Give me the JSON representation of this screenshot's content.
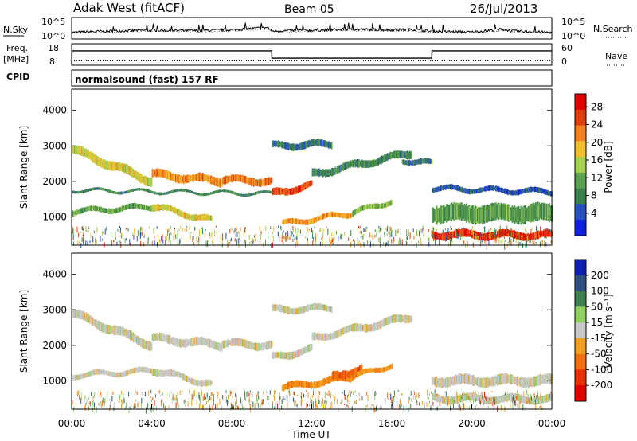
{
  "header": {
    "station": "Adak West (fitACF)",
    "beam": "Beam 05",
    "date": "26/Jul/2013"
  },
  "left_labels": {
    "nsky": "N.Sky",
    "freq": "Freq.",
    "freq_unit": "[MHz]",
    "cpid": "CPID"
  },
  "right_labels": {
    "nsearch": "N.Search",
    "nave": "Nave"
  },
  "cpid_text": "normalsound (fast) 157 RF",
  "colors": {
    "power_scale": [
      "#1020e0",
      "#2850c0",
      "#3c8050",
      "#5aa050",
      "#a6d050",
      "#f0c030",
      "#f08020",
      "#e04010",
      "#e00000"
    ],
    "velocity_scale": [
      "#1020b0",
      "#305080",
      "#408050",
      "#90d060",
      "#c8c8c8",
      "#f0a020",
      "#f07010",
      "#e83000",
      "#e00000"
    ],
    "noise_trace": "#000000"
  },
  "chart_data": [
    {
      "type": "line",
      "panel": "noise",
      "xlim": [
        0,
        24
      ],
      "left_ticks": [
        "10^5",
        "10^0"
      ],
      "right_ticks": [
        "10^5",
        "10^0"
      ],
      "left_label": "N.Sky",
      "right_label": "N.Search",
      "series": [
        {
          "x": [
            0,
            2,
            4,
            6,
            8,
            9.8,
            10,
            12,
            14,
            16,
            17,
            18,
            20,
            21.5,
            22,
            24
          ],
          "values": [
            1.2,
            1.6,
            1.8,
            1.7,
            1.9,
            2.6,
            1.6,
            1.8,
            2.1,
            1.9,
            2.0,
            1.5,
            1.3,
            2.1,
            1.6,
            1.2
          ]
        }
      ]
    },
    {
      "type": "line",
      "panel": "frequency",
      "xlim": [
        0,
        24
      ],
      "left_ticks": [
        "18",
        "8"
      ],
      "right_ticks": [
        "60",
        "0"
      ],
      "left_label": "Freq. [MHz]",
      "right_label": "Nave",
      "series": [
        {
          "x": [
            0,
            0.02,
            10,
            10.01,
            18,
            18.01,
            24
          ],
          "values": [
            8,
            15,
            15,
            11,
            11,
            15,
            15
          ]
        },
        {
          "x": [
            0,
            24
          ],
          "values": [
            9.5,
            9.5
          ]
        }
      ]
    },
    {
      "type": "heatmap",
      "panel": "power",
      "ylabel": "Slant Range [km]",
      "colorbar_label": "Power [dB]",
      "xlim": [
        0,
        24
      ],
      "ylim": [
        200,
        4600
      ],
      "yticks": [
        "4000",
        "3000",
        "2000",
        "1000"
      ],
      "colorbar_ticks": [
        "28",
        "24",
        "20",
        "16",
        "12",
        "8",
        "4"
      ],
      "colorbar_range": [
        0,
        32
      ],
      "bands": [
        {
          "t0": 0.0,
          "t1": 4.0,
          "r0": 2900,
          "r1": 2000,
          "w": 260,
          "v": 18
        },
        {
          "t0": 4.0,
          "t1": 7.5,
          "r0": 2200,
          "r1": 2000,
          "w": 240,
          "v": 22
        },
        {
          "t0": 7.5,
          "t1": 10.0,
          "r0": 2050,
          "r1": 2000,
          "w": 220,
          "v": 24
        },
        {
          "t0": 10.0,
          "t1": 12.0,
          "r0": 1650,
          "r1": 1900,
          "w": 200,
          "v": 26
        },
        {
          "t0": 0.0,
          "t1": 10.0,
          "r0": 1750,
          "r1": 1650,
          "w": 80,
          "v": 10
        },
        {
          "t0": 0.0,
          "t1": 4.5,
          "r0": 1150,
          "r1": 1300,
          "w": 150,
          "v": 12
        },
        {
          "t0": 4.0,
          "t1": 7.0,
          "r0": 1300,
          "r1": 900,
          "w": 180,
          "v": 18
        },
        {
          "t0": 10.5,
          "t1": 14.0,
          "r0": 800,
          "r1": 1100,
          "w": 150,
          "v": 22
        },
        {
          "t0": 14.0,
          "t1": 16.0,
          "r0": 1100,
          "r1": 1450,
          "w": 150,
          "v": 14
        },
        {
          "t0": 10.0,
          "t1": 13.0,
          "r0": 3000,
          "r1": 3050,
          "w": 200,
          "v": 8
        },
        {
          "t0": 12.0,
          "t1": 17.0,
          "r0": 2200,
          "r1": 2800,
          "w": 220,
          "v": 10
        },
        {
          "t0": 16.5,
          "t1": 18.0,
          "r0": 2600,
          "r1": 2500,
          "w": 160,
          "v": 8
        },
        {
          "t0": 18.0,
          "t1": 24.0,
          "r0": 500,
          "r1": 480,
          "w": 220,
          "v": 28
        },
        {
          "t0": 18.0,
          "t1": 24.0,
          "r0": 1100,
          "r1": 1100,
          "w": 500,
          "v": 12
        },
        {
          "t0": 18.0,
          "t1": 24.0,
          "r0": 1800,
          "r1": 1700,
          "w": 150,
          "v": 6
        }
      ]
    },
    {
      "type": "heatmap",
      "panel": "velocity",
      "ylabel": "Slant Range [km]",
      "colorbar_label": "Velocity [m s⁻¹]",
      "xlim": [
        0,
        24
      ],
      "ylim": [
        200,
        4600
      ],
      "yticks": [
        "4000",
        "3000",
        "2000",
        "1000"
      ],
      "xticks": [
        "00:00",
        "04:00",
        "08:00",
        "12:00",
        "16:00",
        "20:00",
        "00:00"
      ],
      "xlabel": "Time UT",
      "colorbar_ticks": [
        "200",
        "100",
        "50",
        "15",
        "-15",
        "-50",
        "-100",
        "-200"
      ],
      "colorbar_range": [
        -250,
        250
      ],
      "bands": [
        {
          "t0": 0.0,
          "t1": 4.0,
          "r0": 2900,
          "r1": 2000,
          "w": 260,
          "v": 0
        },
        {
          "t0": 4.0,
          "t1": 7.5,
          "r0": 2200,
          "r1": 2000,
          "w": 240,
          "v": 0
        },
        {
          "t0": 7.5,
          "t1": 10.0,
          "r0": 2050,
          "r1": 2000,
          "w": 220,
          "v": 0
        },
        {
          "t0": 10.0,
          "t1": 12.0,
          "r0": 1650,
          "r1": 1900,
          "w": 200,
          "v": 0
        },
        {
          "t0": 0.0,
          "t1": 4.5,
          "r0": 1150,
          "r1": 1300,
          "w": 150,
          "v": 0
        },
        {
          "t0": 4.0,
          "t1": 7.0,
          "r0": 1300,
          "r1": 900,
          "w": 180,
          "v": 0
        },
        {
          "t0": 10.5,
          "t1": 14.0,
          "r0": 800,
          "r1": 1100,
          "w": 200,
          "v": -80
        },
        {
          "t0": 13.0,
          "t1": 14.5,
          "r0": 1100,
          "r1": 1350,
          "w": 250,
          "v": -120
        },
        {
          "t0": 14.0,
          "t1": 16.0,
          "r0": 1100,
          "r1": 1450,
          "w": 150,
          "v": -70
        },
        {
          "t0": 10.0,
          "t1": 13.0,
          "r0": 3000,
          "r1": 3050,
          "w": 200,
          "v": 0
        },
        {
          "t0": 12.0,
          "t1": 17.0,
          "r0": 2200,
          "r1": 2800,
          "w": 220,
          "v": 0
        },
        {
          "t0": 18.0,
          "t1": 24.0,
          "r0": 500,
          "r1": 480,
          "w": 220,
          "v": 0
        },
        {
          "t0": 18.0,
          "t1": 24.0,
          "r0": 1000,
          "r1": 1000,
          "w": 300,
          "v": 0
        }
      ]
    }
  ]
}
